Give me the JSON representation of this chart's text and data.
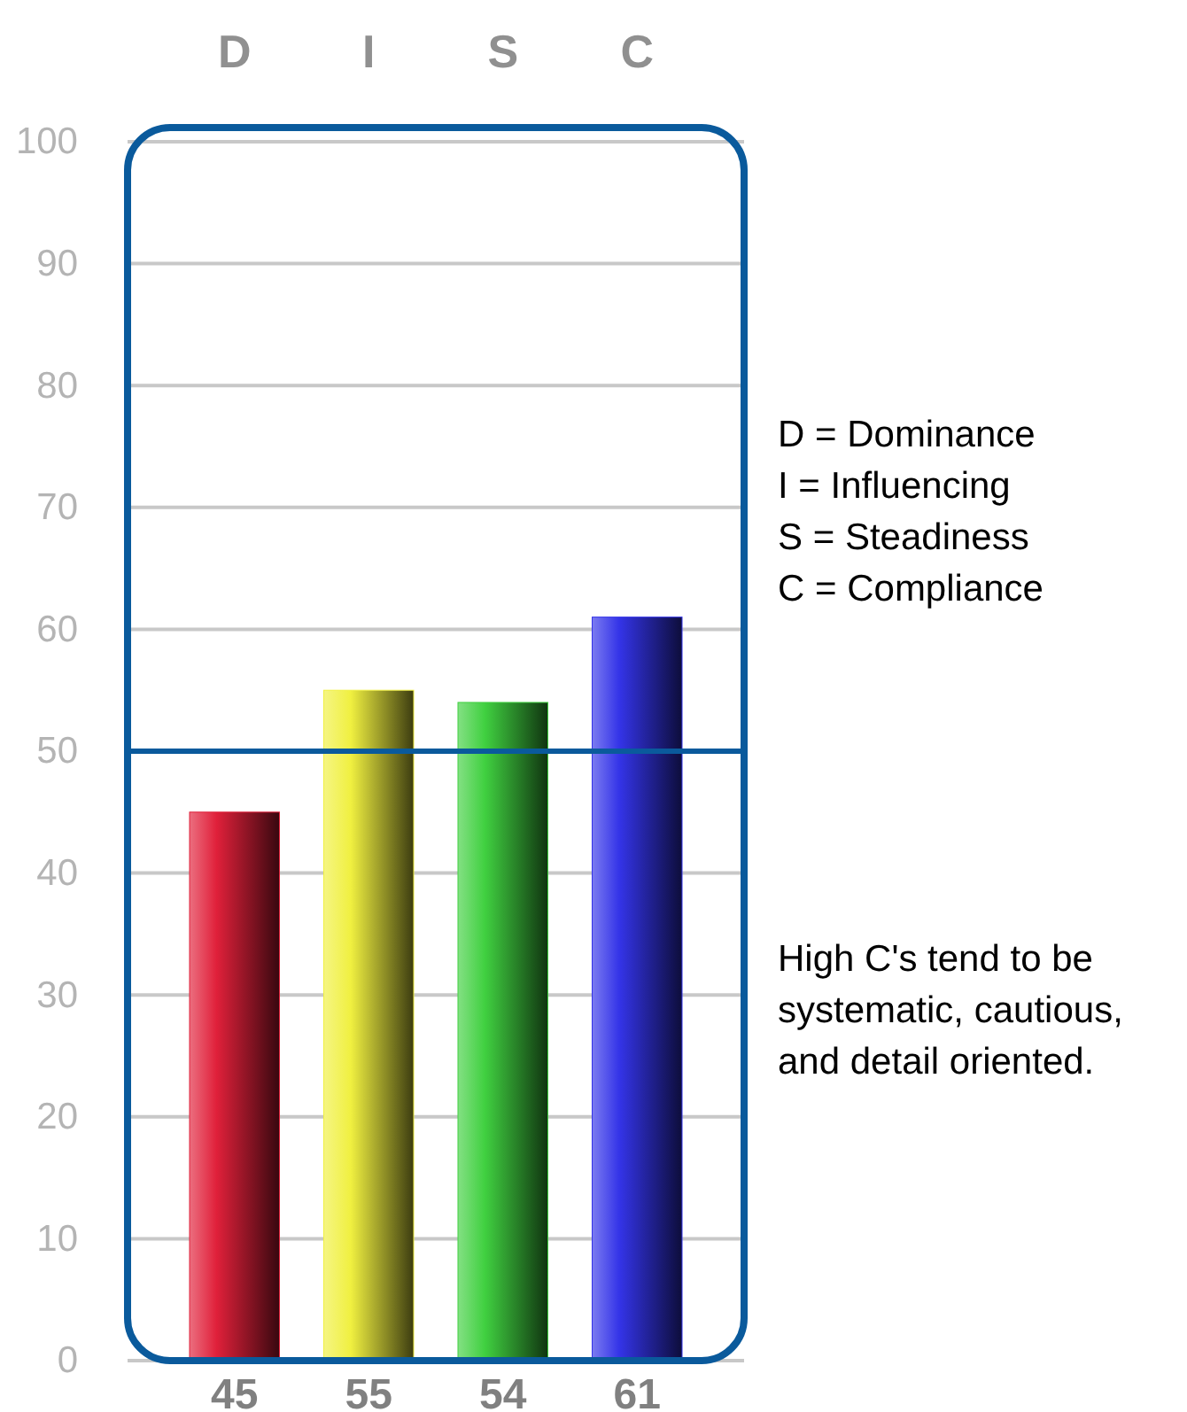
{
  "chart_data": {
    "type": "bar",
    "categories": [
      "D",
      "I",
      "S",
      "C"
    ],
    "values": [
      45,
      55,
      54,
      61
    ],
    "colors": [
      "#e0203a",
      "#f0f040",
      "#40d040",
      "#3434e8"
    ],
    "ylim": [
      0,
      100
    ],
    "yticks": [
      0,
      10,
      20,
      30,
      40,
      50,
      60,
      70,
      80,
      90,
      100
    ],
    "grid": "y",
    "data_labels": true,
    "ref_lines": [
      {
        "axis": "y",
        "value": 50,
        "color": "#0a5a9c"
      }
    ],
    "annotations": [
      "D = Dominance",
      "I = Influencing",
      "S = Steadiness",
      "C = Compliance",
      "High C's tend to be systematic, cautious, and detail oriented."
    ]
  }
}
